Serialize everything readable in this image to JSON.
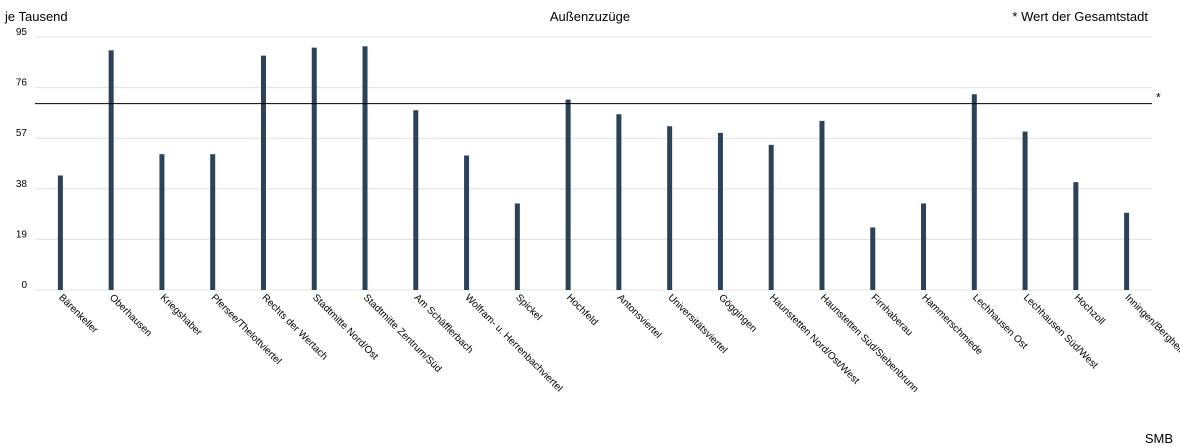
{
  "header": {
    "unit_label": "je Tausend",
    "title": "Außenzuzüge",
    "reference_note": "* Wert der Gesamtstadt",
    "source": "SMB"
  },
  "colors": {
    "bar": "#2b4257",
    "reference_line": "#000000",
    "grid": "#e0e0e0"
  },
  "chart_data": {
    "type": "bar",
    "title": "Außenzuzüge",
    "ylabel": "je Tausend",
    "xlabel": "",
    "ylim": [
      0,
      95
    ],
    "yticks": [
      "0",
      "19",
      "38",
      "57",
      "76",
      "95"
    ],
    "grid": true,
    "categories": [
      "Bärenkeller",
      "Oberhausen",
      "Kriegshaber",
      "Pfersee/Thelottviertel",
      "Rechts der Wertach",
      "Stadtmitte Nord/Ost",
      "Stadtmitte Zentrum/Süd",
      "Am Schäfflerbach",
      "Wolfram- u. Herrenbachviertel",
      "Spickel",
      "Hochfeld",
      "Antonsviertel",
      "Universitätsviertel",
      "Göggingen",
      "Haunstetten Nord/Ost/West",
      "Haunstetten Süd/Siebenbrunn",
      "Firnhaberau",
      "Hammerschmiede",
      "Lechhausen Ost",
      "Lechhausen Süd/West",
      "Hochzoll",
      "Inningen/Bergheim"
    ],
    "series": [
      {
        "values": [
          43,
          90,
          51,
          51,
          88,
          91,
          91.5,
          67.5,
          50.5,
          32.5,
          71.5,
          66,
          61.5,
          59,
          54.5,
          63.5,
          23.5,
          32.5,
          73.5,
          59.5,
          40.5,
          29
        ]
      }
    ],
    "reference_line": {
      "value": 70,
      "label": "*"
    }
  }
}
